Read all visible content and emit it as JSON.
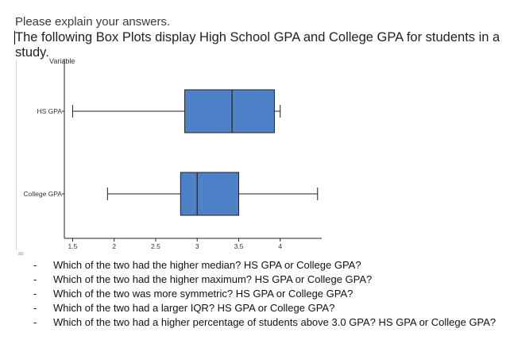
{
  "intro_text": "Please explain your answers.",
  "prompt_text": "The following Box Plots display High School GPA and College GPA for students in a study.",
  "chart_data": {
    "type": "box",
    "ylabel": "Variable",
    "categories": [
      "HS GPA",
      "College GPA"
    ],
    "boxes": [
      {
        "name": "HS GPA",
        "min": 1.5,
        "q1": 2.85,
        "median": 3.42,
        "q3": 3.93,
        "max": 4.0,
        "color": "#4f81c8"
      },
      {
        "name": "College GPA",
        "min": 1.92,
        "q1": 2.8,
        "median": 3.0,
        "q3": 3.5,
        "max": 4.45,
        "color": "#4f81c8"
      }
    ],
    "xticks": [
      "1.5",
      "2",
      "2.5",
      "3",
      "3.5",
      "4"
    ],
    "xtick_values": [
      1.5,
      2,
      2.5,
      3,
      3.5,
      4
    ],
    "xlim": [
      1.4,
      4.5
    ]
  },
  "questions": [
    "Which of the two had the higher median?  HS GPA or College GPA?",
    "Which of the two had the higher maximum? HS GPA or College GPA?",
    "Which of the two was more symmetric? HS GPA or College GPA?",
    "Which of the two had a larger IQR? HS GPA or College GPA?",
    "Which of the two had a higher percentage of students above 3.0 GPA? HS GPA or College GPA?"
  ],
  "bullet_symbol": "-"
}
